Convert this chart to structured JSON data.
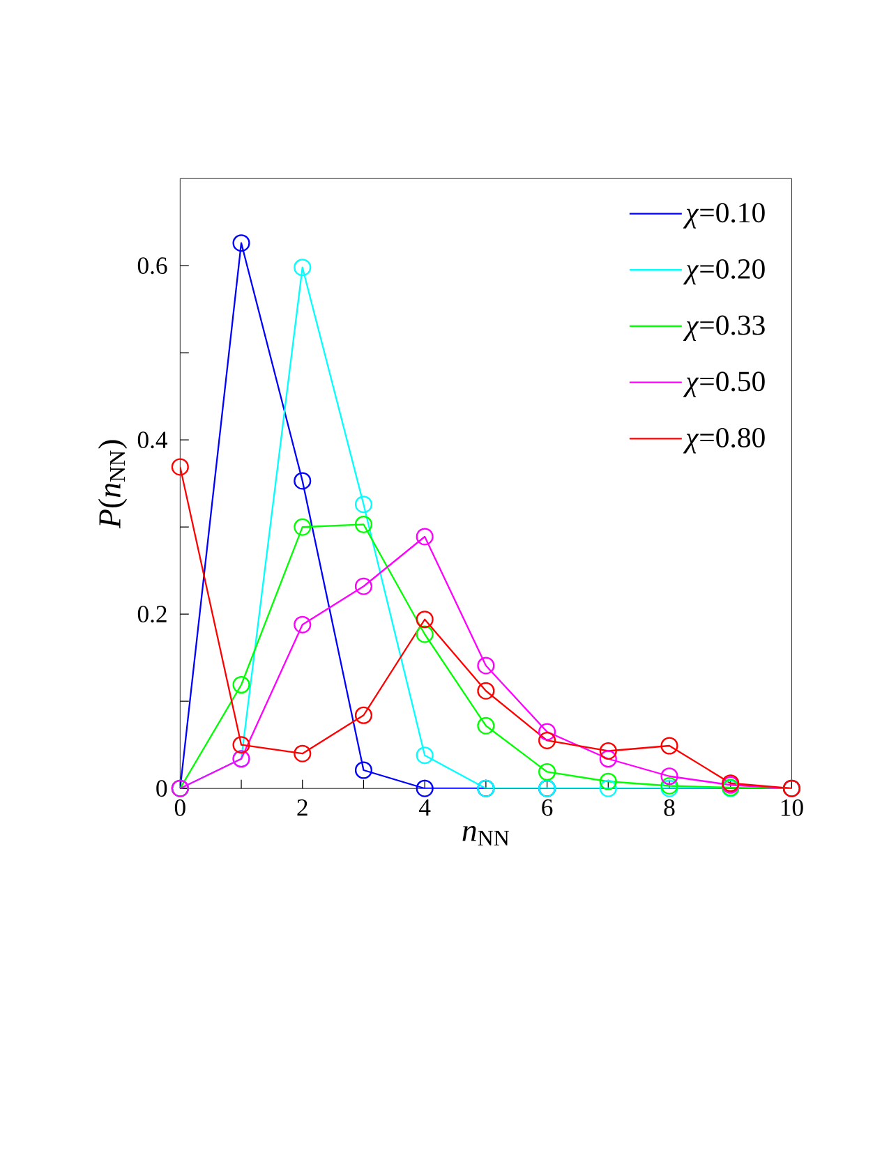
{
  "chart_data": {
    "type": "line",
    "xlabel": "*n*$_{NN}$",
    "ylabel": "*P*(*n*$_{NN}$)",
    "x": [
      0,
      1,
      2,
      3,
      4,
      5,
      6,
      7,
      8,
      9,
      10
    ],
    "xlim": [
      0,
      10
    ],
    "ylim": [
      0,
      0.7
    ],
    "xticks": [
      0,
      {
        "value": 1,
        "label": null
      },
      2,
      {
        "value": 3,
        "label": null
      },
      4,
      {
        "value": 5,
        "label": null
      },
      6,
      {
        "value": 7,
        "label": null
      },
      8,
      {
        "value": 9,
        "label": null
      },
      10
    ],
    "yticks": [
      0,
      {
        "value": 0.1,
        "label": null
      },
      0.2,
      {
        "value": 0.3,
        "label": null
      },
      0.4,
      {
        "value": 0.5,
        "label": null
      },
      0.6
    ],
    "legend": "top right",
    "marker": "circle",
    "series": [
      {
        "name": "*χ*=0.10",
        "color": "#0000ff",
        "values": [
          0,
          0.626,
          0.353,
          0.021,
          0,
          0,
          0,
          null,
          null,
          null,
          null
        ]
      },
      {
        "name": "*χ*=0.20",
        "color": "#00ffff",
        "values": [
          0,
          0.034,
          0.598,
          0.326,
          0.038,
          0,
          0,
          0,
          0,
          0,
          0
        ]
      },
      {
        "name": "*χ*=0.33",
        "color": "#00ff00",
        "values": [
          0,
          0.119,
          0.3,
          0.303,
          0.177,
          0.072,
          0.019,
          0.008,
          0.003,
          0.001,
          0
        ]
      },
      {
        "name": "*χ*=0.50",
        "color": "#ff00ff",
        "values": [
          0,
          0.034,
          0.188,
          0.232,
          0.289,
          0.141,
          0.065,
          0.034,
          0.014,
          0.004,
          0
        ]
      },
      {
        "name": "*χ*=0.80",
        "color": "#ff0000",
        "values": [
          0.369,
          0.05,
          0.04,
          0.084,
          0.194,
          0.112,
          0.055,
          0.043,
          0.049,
          0.006,
          0
        ]
      }
    ]
  }
}
